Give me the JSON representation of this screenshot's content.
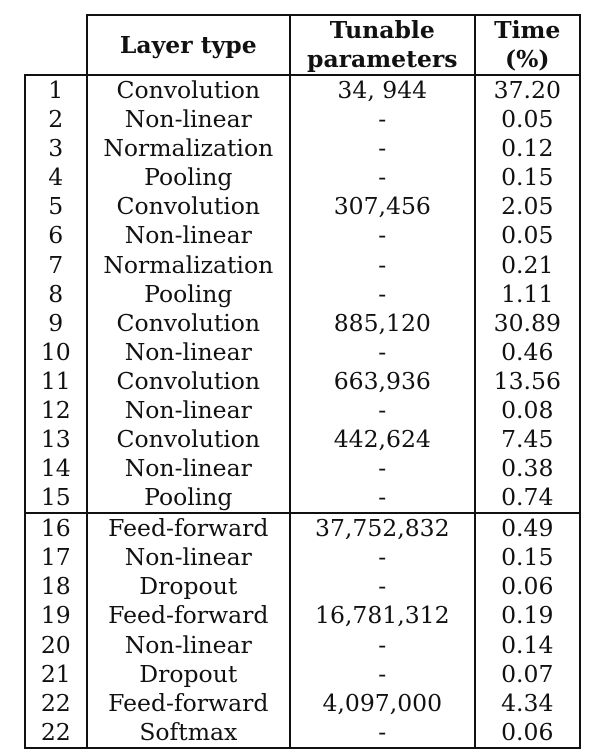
{
  "header": {
    "layer_type": "Layer type",
    "params_line1": "Tunable",
    "params_line2": "parameters",
    "time_line1": "Time",
    "time_line2": "(%)"
  },
  "rows": [
    {
      "idx": "1",
      "type": "Convolution",
      "params": "34, 944",
      "time": "37.20"
    },
    {
      "idx": "2",
      "type": "Non-linear",
      "params": "-",
      "time": "0.05"
    },
    {
      "idx": "3",
      "type": "Normalization",
      "params": "-",
      "time": "0.12"
    },
    {
      "idx": "4",
      "type": "Pooling",
      "params": "-",
      "time": "0.15"
    },
    {
      "idx": "5",
      "type": "Convolution",
      "params": "307,456",
      "time": "2.05"
    },
    {
      "idx": "6",
      "type": "Non-linear",
      "params": "-",
      "time": "0.05"
    },
    {
      "idx": "7",
      "type": "Normalization",
      "params": "-",
      "time": "0.21"
    },
    {
      "idx": "8",
      "type": "Pooling",
      "params": "-",
      "time": "1.11"
    },
    {
      "idx": "9",
      "type": "Convolution",
      "params": "885,120",
      "time": "30.89"
    },
    {
      "idx": "10",
      "type": "Non-linear",
      "params": "-",
      "time": "0.46"
    },
    {
      "idx": "11",
      "type": "Convolution",
      "params": "663,936",
      "time": "13.56"
    },
    {
      "idx": "12",
      "type": "Non-linear",
      "params": "-",
      "time": "0.08"
    },
    {
      "idx": "13",
      "type": "Convolution",
      "params": "442,624",
      "time": "7.45"
    },
    {
      "idx": "14",
      "type": "Non-linear",
      "params": "-",
      "time": "0.38"
    },
    {
      "idx": "15",
      "type": "Pooling",
      "params": "-",
      "time": "0.74"
    },
    {
      "idx": "16",
      "type": "Feed-forward",
      "params": "37,752,832",
      "time": "0.49"
    },
    {
      "idx": "17",
      "type": "Non-linear",
      "params": "-",
      "time": "0.15"
    },
    {
      "idx": "18",
      "type": "Dropout",
      "params": "-",
      "time": "0.06"
    },
    {
      "idx": "19",
      "type": "Feed-forward",
      "params": "16,781,312",
      "time": "0.19"
    },
    {
      "idx": "20",
      "type": "Non-linear",
      "params": "-",
      "time": "0.14"
    },
    {
      "idx": "21",
      "type": "Dropout",
      "params": "-",
      "time": "0.07"
    },
    {
      "idx": "22",
      "type": "Feed-forward",
      "params": "4,097,000",
      "time": "4.34"
    },
    {
      "idx": "22",
      "type": "Softmax",
      "params": "-",
      "time": "0.06"
    }
  ]
}
